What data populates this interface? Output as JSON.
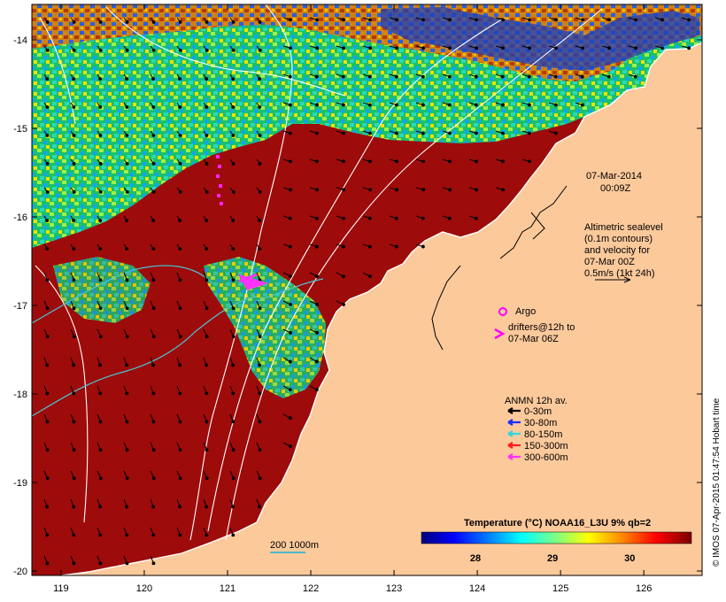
{
  "map": {
    "lon_ticks": [
      "119",
      "120",
      "121",
      "122",
      "123",
      "124",
      "125",
      "126"
    ],
    "lat_ticks": [
      "-14",
      "-15",
      "-16",
      "-17",
      "-18",
      "-19",
      "-20"
    ],
    "lon_range": [
      118.65,
      126.7
    ],
    "lat_range": [
      -20.05,
      -13.6
    ],
    "colors": {
      "land": "#fcc99b",
      "warm": "#9d0b0b",
      "ocean_blue": "#1a3fbf",
      "contour": "#ffffff",
      "isobath": "#49c6d4",
      "argo": "#ff00ff",
      "drifter": "#ff22ff",
      "scalebar": "#48b9c8"
    }
  },
  "annotation": {
    "date": "07-Mar-2014",
    "time": "00:09Z",
    "altimetry_lines": [
      "Altimetric sealevel",
      "(0.1m contours)",
      "and velocity for",
      "07-Mar 00Z",
      "0.5m/s (1kt 24h)"
    ],
    "argo_label": "Argo",
    "drifters_lines": [
      "drifters@12h to",
      "07-Mar 06Z"
    ],
    "anmn_title": "ANMN 12h av.",
    "anmn_legend": [
      {
        "label": "0-30m",
        "color": "#000000"
      },
      {
        "label": "30-80m",
        "color": "#1f2fff"
      },
      {
        "label": "80-150m",
        "color": "#33d6e0"
      },
      {
        "label": "150-300m",
        "color": "#ff1f1f"
      },
      {
        "label": "300-600m",
        "color": "#ff33ff"
      }
    ],
    "scalebar_label": "200  1000m"
  },
  "colorbar": {
    "title": "Temperature (°C) NOAA16_L3U 9% qb=2",
    "ticks": [
      "28",
      "29",
      "30"
    ],
    "tick_values": [
      28,
      29,
      30
    ],
    "range": [
      27.3,
      30.8
    ],
    "stops": [
      "#00007a",
      "#0000ff",
      "#0080ff",
      "#00ffff",
      "#80ff80",
      "#ffff00",
      "#ff8000",
      "#ff0000",
      "#7a0000"
    ]
  },
  "credit": "© IMOS 07-Apr-2015 01:47:54 Hobart time"
}
